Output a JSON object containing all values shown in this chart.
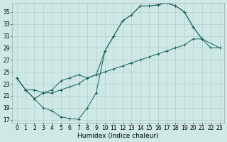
{
  "xlabel": "Humidex (Indice chaleur)",
  "background_color": "#cde8e5",
  "grid_color": "#afd0cc",
  "line_color": "#1a6060",
  "xlim": [
    -0.5,
    23.5
  ],
  "ylim": [
    16.5,
    36.5
  ],
  "yticks": [
    17,
    19,
    21,
    23,
    25,
    27,
    29,
    31,
    33,
    35
  ],
  "xticks": [
    0,
    1,
    2,
    3,
    4,
    5,
    6,
    7,
    8,
    9,
    10,
    11,
    12,
    13,
    14,
    15,
    16,
    17,
    18,
    19,
    20,
    21,
    22,
    23
  ],
  "line1_x": [
    0,
    1,
    2,
    3,
    4,
    5,
    6,
    7,
    8,
    9,
    10,
    11,
    12,
    13,
    14,
    15,
    16,
    17,
    18,
    19,
    20,
    21
  ],
  "line1_y": [
    24.0,
    22.0,
    20.5,
    19.0,
    18.5,
    17.5,
    17.2,
    17.1,
    19.0,
    21.5,
    28.5,
    31.0,
    33.5,
    34.5,
    36.0,
    36.0,
    36.2,
    36.5,
    36.0,
    35.0,
    32.5,
    30.5
  ],
  "line2_x": [
    0,
    1,
    2,
    3,
    4,
    5,
    6,
    7,
    8,
    9,
    10,
    11,
    12,
    13,
    14,
    15,
    16,
    17,
    18,
    19,
    20,
    21,
    23
  ],
  "line2_y": [
    24.0,
    22.0,
    20.5,
    21.5,
    22.0,
    23.5,
    24.0,
    24.5,
    24.0,
    24.5,
    28.5,
    31.0,
    33.5,
    34.5,
    36.0,
    36.0,
    36.2,
    36.5,
    36.0,
    35.0,
    32.5,
    30.5,
    29.0
  ],
  "line3_x": [
    0,
    1,
    2,
    3,
    4,
    5,
    6,
    7,
    8,
    9,
    10,
    11,
    12,
    13,
    14,
    15,
    16,
    17,
    18,
    19,
    20,
    21,
    22,
    23
  ],
  "line3_y": [
    24.0,
    22.0,
    22.0,
    21.5,
    21.5,
    22.0,
    22.5,
    23.0,
    24.0,
    24.5,
    25.0,
    25.5,
    26.0,
    26.5,
    27.0,
    27.5,
    28.0,
    28.5,
    29.0,
    29.5,
    30.5,
    30.5,
    29.0,
    29.0
  ],
  "font_size_label": 6.5,
  "font_size_tick": 5.5,
  "linewidth": 0.7,
  "markersize": 2.5
}
